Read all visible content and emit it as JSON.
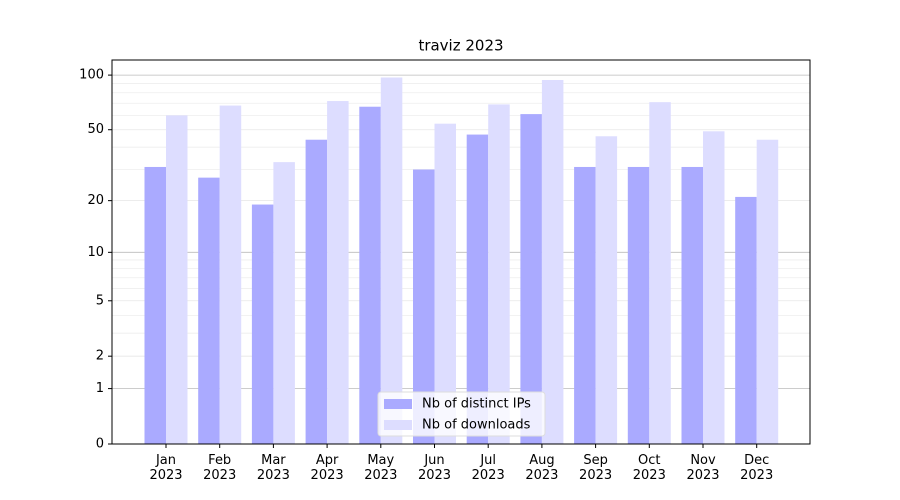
{
  "chart_data": {
    "type": "bar",
    "title": "traviz 2023",
    "categories": [
      "Jan\n2023",
      "Feb\n2023",
      "Mar\n2023",
      "Apr\n2023",
      "May\n2023",
      "Jun\n2023",
      "Jul\n2023",
      "Aug\n2023",
      "Sep\n2023",
      "Oct\n2023",
      "Nov\n2023",
      "Dec\n2023"
    ],
    "series": [
      {
        "name": "Nb of distinct IPs",
        "color": "#aaaaff",
        "values": [
          31,
          27,
          19,
          44,
          67,
          30,
          47,
          61,
          31,
          31,
          31,
          21
        ]
      },
      {
        "name": "Nb of downloads",
        "color": "#ddddff",
        "values": [
          60,
          68,
          33,
          72,
          97,
          54,
          69,
          94,
          46,
          71,
          49,
          44
        ]
      }
    ],
    "yscale": "log1p",
    "ylim": [
      0,
      121
    ],
    "yticks": [
      0,
      1,
      2,
      5,
      10,
      20,
      50,
      100
    ],
    "minor_yticks": [
      3,
      4,
      6,
      7,
      8,
      9,
      30,
      40,
      60,
      70,
      80,
      90
    ],
    "grid": true,
    "legend": "lower center"
  }
}
